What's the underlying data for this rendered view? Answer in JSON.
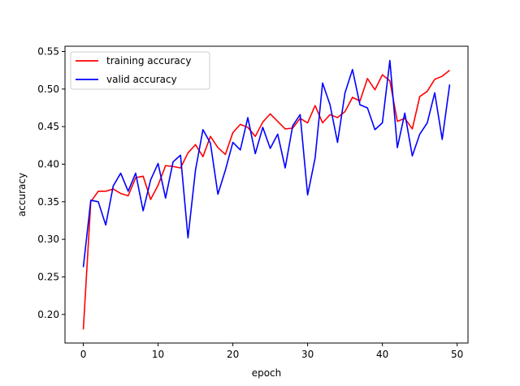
{
  "chart_data": {
    "type": "line",
    "xlabel": "epoch",
    "ylabel": "accuracy",
    "xlim": [
      -2.45,
      51.45
    ],
    "ylim": [
      0.162,
      0.557
    ],
    "xticks": [
      0,
      10,
      20,
      30,
      40,
      50
    ],
    "yticks": [
      0.2,
      0.25,
      0.3,
      0.35,
      0.4,
      0.45,
      0.5,
      0.55
    ],
    "ytick_labels": [
      "0.20",
      "0.25",
      "0.30",
      "0.35",
      "0.40",
      "0.45",
      "0.50",
      "0.55"
    ],
    "legend_position": "upper-left",
    "grid": false,
    "x": [
      0,
      1,
      2,
      3,
      4,
      5,
      6,
      7,
      8,
      9,
      10,
      11,
      12,
      13,
      14,
      15,
      16,
      17,
      18,
      19,
      20,
      21,
      22,
      23,
      24,
      25,
      26,
      27,
      28,
      29,
      30,
      31,
      32,
      33,
      34,
      35,
      36,
      37,
      38,
      39,
      40,
      41,
      42,
      43,
      44,
      45,
      46,
      47,
      48,
      49
    ],
    "series": [
      {
        "name": "training accuracy",
        "color": "#ff0000",
        "values": [
          0.18,
          0.35,
          0.364,
          0.364,
          0.367,
          0.361,
          0.358,
          0.382,
          0.384,
          0.353,
          0.372,
          0.398,
          0.397,
          0.395,
          0.415,
          0.426,
          0.41,
          0.437,
          0.422,
          0.413,
          0.442,
          0.453,
          0.449,
          0.437,
          0.456,
          0.467,
          0.457,
          0.447,
          0.448,
          0.461,
          0.455,
          0.478,
          0.455,
          0.466,
          0.462,
          0.47,
          0.489,
          0.484,
          0.514,
          0.499,
          0.519,
          0.511,
          0.457,
          0.461,
          0.447,
          0.49,
          0.497,
          0.513,
          0.517,
          0.525
        ]
      },
      {
        "name": "valid accuracy",
        "color": "#0000ff",
        "values": [
          0.263,
          0.352,
          0.35,
          0.319,
          0.371,
          0.388,
          0.364,
          0.388,
          0.338,
          0.379,
          0.401,
          0.355,
          0.403,
          0.412,
          0.302,
          0.392,
          0.446,
          0.428,
          0.36,
          0.392,
          0.429,
          0.419,
          0.462,
          0.414,
          0.449,
          0.421,
          0.44,
          0.395,
          0.451,
          0.466,
          0.359,
          0.408,
          0.508,
          0.479,
          0.429,
          0.495,
          0.526,
          0.479,
          0.475,
          0.446,
          0.455,
          0.538,
          0.422,
          0.468,
          0.411,
          0.44,
          0.455,
          0.495,
          0.433,
          0.506
        ]
      }
    ]
  }
}
